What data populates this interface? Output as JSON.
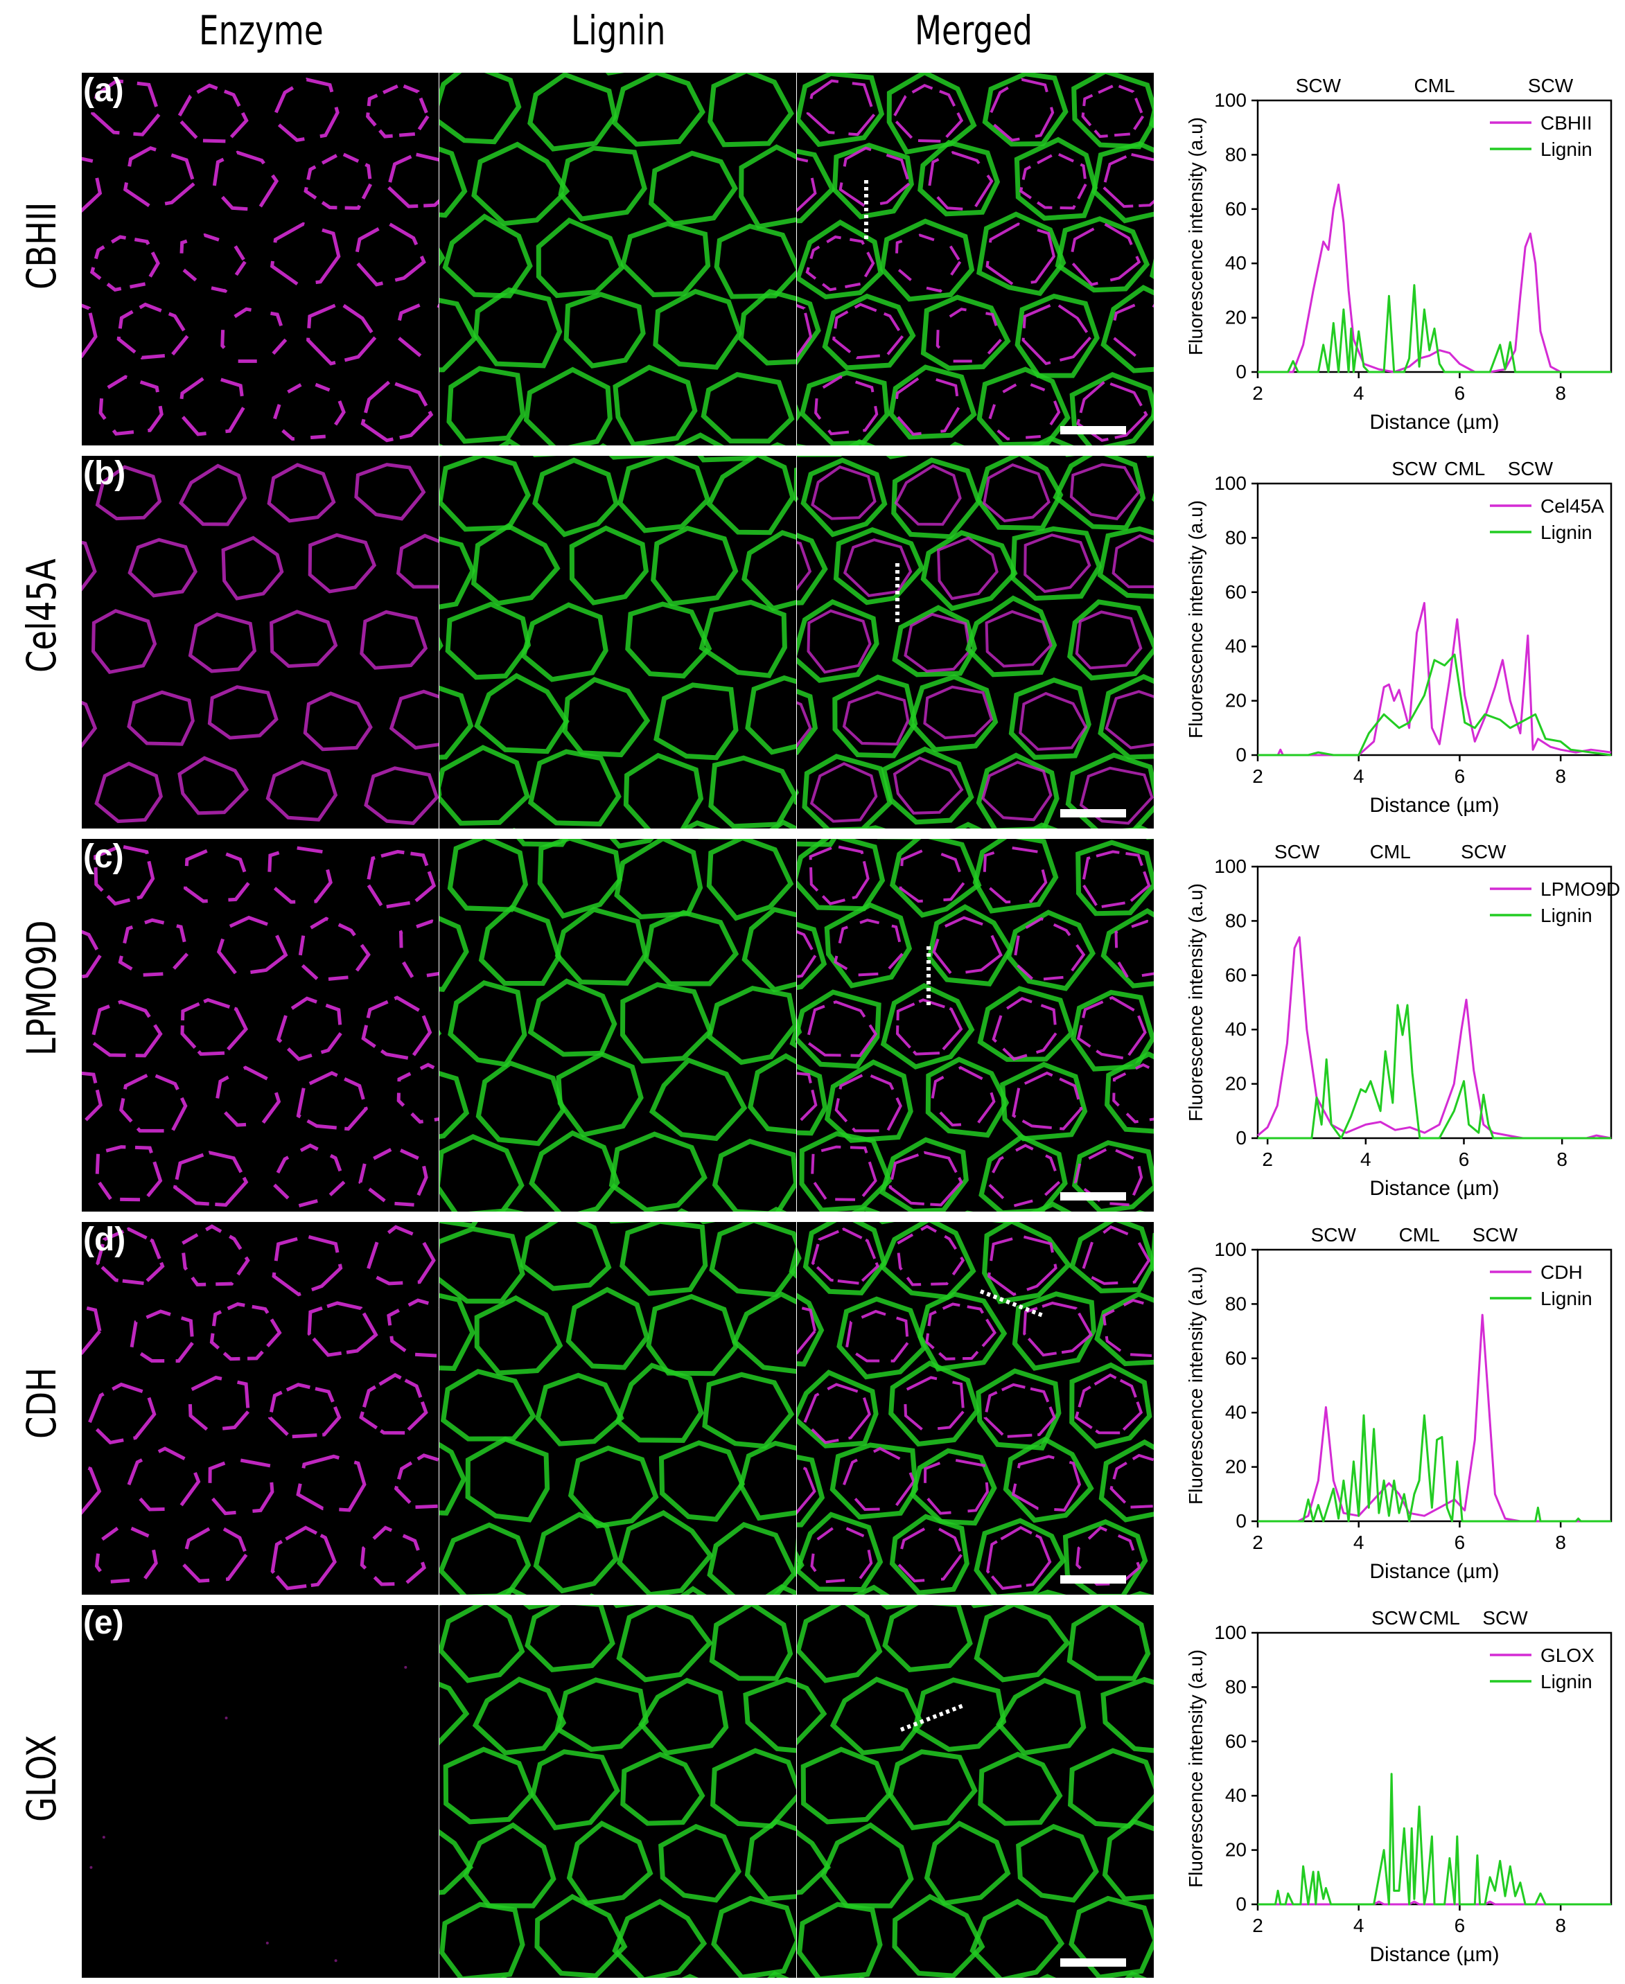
{
  "columns": [
    "Enzyme",
    "Lignin",
    "Merged"
  ],
  "colors": {
    "enzyme": "#d42bd4",
    "lignin": "#22cc22",
    "background": "#000000",
    "line": "#ffffff"
  },
  "rows": [
    {
      "letter": "(a)",
      "enzyme": "CBHII",
      "scalebar": true,
      "line": "vertical",
      "regions": [
        "SCW",
        "CML",
        "SCW"
      ]
    },
    {
      "letter": "(b)",
      "enzyme": "Cel45A",
      "scalebar": true,
      "line": "vertical",
      "regions": [
        "SCW",
        "CML",
        "SCW"
      ]
    },
    {
      "letter": "(c)",
      "enzyme": "LPMO9D",
      "scalebar": true,
      "line": "vertical",
      "regions": [
        "SCW",
        "CML",
        "SCW"
      ]
    },
    {
      "letter": "(d)",
      "enzyme": "CDH",
      "scalebar": true,
      "line": "diagonal-down",
      "regions": [
        "SCW",
        "CML",
        "SCW"
      ]
    },
    {
      "letter": "(e)",
      "enzyme": "GLOX",
      "scalebar": true,
      "line": "diagonal-up",
      "regions": [
        "SCW",
        "CML",
        "SCW"
      ]
    }
  ],
  "chart_data": [
    {
      "type": "line",
      "xlabel": "Distance (µm)",
      "ylabel": "Fluorescence intensity (a.u)",
      "xlim": [
        2,
        9
      ],
      "ylim": [
        0,
        100
      ],
      "xticks": [
        2,
        4,
        6,
        8
      ],
      "yticks": [
        0,
        20,
        40,
        60,
        80,
        100
      ],
      "top_labels": [
        {
          "text": "SCW",
          "x": 3.2
        },
        {
          "text": "CML",
          "x": 5.5
        },
        {
          "text": "SCW",
          "x": 7.8
        }
      ],
      "legend": "top-right",
      "series": [
        {
          "name": "CBHII",
          "color": "#d42bd4",
          "x": [
            2.0,
            2.7,
            2.9,
            3.1,
            3.3,
            3.4,
            3.5,
            3.6,
            3.7,
            3.8,
            3.9,
            4.1,
            4.4,
            4.7,
            5.0,
            5.2,
            5.4,
            5.6,
            5.8,
            6.0,
            6.3,
            6.6,
            6.9,
            7.1,
            7.2,
            7.3,
            7.4,
            7.5,
            7.6,
            7.8,
            8.0,
            9.0
          ],
          "y": [
            0,
            0,
            10,
            30,
            48,
            45,
            60,
            69,
            55,
            30,
            12,
            3,
            1,
            0,
            2,
            5,
            6,
            8,
            7,
            3,
            0,
            0,
            1,
            8,
            28,
            46,
            51,
            40,
            15,
            2,
            0,
            0
          ]
        },
        {
          "name": "Lignin",
          "color": "#22cc22",
          "x": [
            2.0,
            2.6,
            2.7,
            2.8,
            3.2,
            3.3,
            3.4,
            3.5,
            3.6,
            3.7,
            3.8,
            3.85,
            3.9,
            4.0,
            4.1,
            4.2,
            4.3,
            4.5,
            4.6,
            4.7,
            4.9,
            5.0,
            5.1,
            5.2,
            5.3,
            5.4,
            5.5,
            5.6,
            5.7,
            5.8,
            6.0,
            6.6,
            6.8,
            6.9,
            7.0,
            7.1,
            7.2,
            9.0
          ],
          "y": [
            0,
            0,
            4,
            0,
            0,
            10,
            0,
            18,
            0,
            23,
            0,
            16,
            0,
            15,
            2,
            0,
            0,
            0,
            28,
            0,
            0,
            5,
            32,
            2,
            23,
            8,
            16,
            3,
            0,
            0,
            0,
            0,
            10,
            1,
            11,
            0,
            0,
            0
          ]
        }
      ]
    },
    {
      "type": "line",
      "xlabel": "Distance (µm)",
      "ylabel": "Fluorescence intensity (a.u)",
      "xlim": [
        2,
        9
      ],
      "ylim": [
        0,
        100
      ],
      "xticks": [
        2,
        4,
        6,
        8
      ],
      "yticks": [
        0,
        20,
        40,
        60,
        80,
        100
      ],
      "top_labels": [
        {
          "text": "SCW",
          "x": 5.1
        },
        {
          "text": "CML",
          "x": 6.1
        },
        {
          "text": "SCW",
          "x": 7.4
        }
      ],
      "legend": "top-right",
      "series": [
        {
          "name": "Cel45A",
          "color": "#d42bd4",
          "x": [
            2.0,
            2.4,
            2.45,
            2.5,
            4.0,
            4.3,
            4.5,
            4.6,
            4.7,
            4.8,
            5.0,
            5.15,
            5.3,
            5.45,
            5.6,
            5.8,
            5.95,
            6.1,
            6.3,
            6.5,
            6.7,
            6.85,
            7.0,
            7.2,
            7.35,
            7.45,
            7.55,
            7.8,
            8.0,
            8.3,
            8.6,
            9.0
          ],
          "y": [
            0,
            0,
            2,
            0,
            0,
            5,
            25,
            26,
            20,
            24,
            10,
            45,
            56,
            10,
            4,
            28,
            50,
            22,
            5,
            14,
            25,
            35,
            20,
            8,
            44,
            2,
            6,
            3,
            2,
            1,
            2,
            1
          ]
        },
        {
          "name": "Lignin",
          "color": "#22cc22",
          "x": [
            2.0,
            3.0,
            3.2,
            3.5,
            4.0,
            4.2,
            4.5,
            4.8,
            5.0,
            5.3,
            5.5,
            5.7,
            5.9,
            6.1,
            6.3,
            6.5,
            6.8,
            7.0,
            7.2,
            7.5,
            7.7,
            8.0,
            8.2,
            9.0
          ],
          "y": [
            0,
            0,
            1,
            0,
            0,
            8,
            15,
            10,
            12,
            22,
            35,
            33,
            37,
            12,
            10,
            15,
            13,
            10,
            12,
            15,
            6,
            5,
            2,
            0
          ]
        }
      ]
    },
    {
      "type": "line",
      "xlabel": "Distance (µm)",
      "ylabel": "Fluorescence intensity (a.u)",
      "xlim": [
        1.8,
        9
      ],
      "ylim": [
        0,
        100
      ],
      "xticks": [
        2,
        4,
        6,
        8
      ],
      "yticks": [
        0,
        20,
        40,
        60,
        80,
        100
      ],
      "top_labels": [
        {
          "text": "SCW",
          "x": 2.6
        },
        {
          "text": "CML",
          "x": 4.5
        },
        {
          "text": "SCW",
          "x": 6.4
        }
      ],
      "legend": "top-right",
      "series": [
        {
          "name": "LPMO9D",
          "color": "#d42bd4",
          "x": [
            1.8,
            2.0,
            2.2,
            2.4,
            2.55,
            2.65,
            2.8,
            3.0,
            3.3,
            3.6,
            4.0,
            4.3,
            4.6,
            4.9,
            5.2,
            5.5,
            5.8,
            5.95,
            6.05,
            6.2,
            6.4,
            6.6,
            6.9,
            7.2,
            8.5,
            8.7,
            9.0
          ],
          "y": [
            1,
            4,
            12,
            35,
            70,
            74,
            40,
            15,
            5,
            2,
            5,
            6,
            3,
            4,
            2,
            5,
            20,
            40,
            51,
            25,
            5,
            2,
            1,
            0,
            0,
            1,
            0
          ]
        },
        {
          "name": "Lignin",
          "color": "#22cc22",
          "x": [
            1.8,
            2.9,
            3.0,
            3.1,
            3.2,
            3.3,
            3.5,
            3.7,
            3.9,
            4.0,
            4.1,
            4.3,
            4.4,
            4.55,
            4.65,
            4.75,
            4.85,
            4.95,
            5.1,
            5.5,
            5.8,
            6.0,
            6.1,
            6.3,
            6.4,
            6.5,
            6.6,
            9.0
          ],
          "y": [
            0,
            0,
            15,
            5,
            29,
            5,
            0,
            8,
            18,
            17,
            21,
            10,
            32,
            13,
            49,
            38,
            49,
            24,
            0,
            0,
            10,
            21,
            5,
            2,
            16,
            5,
            0,
            0
          ]
        }
      ]
    },
    {
      "type": "line",
      "xlabel": "Distance (µm)",
      "ylabel": "Fluorescence intensity (a.u)",
      "xlim": [
        2,
        9
      ],
      "ylim": [
        0,
        100
      ],
      "xticks": [
        2,
        4,
        6,
        8
      ],
      "yticks": [
        0,
        20,
        40,
        60,
        80,
        100
      ],
      "top_labels": [
        {
          "text": "SCW",
          "x": 3.5
        },
        {
          "text": "CML",
          "x": 5.2
        },
        {
          "text": "SCW",
          "x": 6.7
        }
      ],
      "legend": "top-right",
      "series": [
        {
          "name": "CDH",
          "color": "#d42bd4",
          "x": [
            2.0,
            2.8,
            3.0,
            3.2,
            3.35,
            3.5,
            3.7,
            4.0,
            4.3,
            4.6,
            4.8,
            5.0,
            5.3,
            5.6,
            5.9,
            6.1,
            6.3,
            6.45,
            6.55,
            6.7,
            6.9,
            7.2,
            9.0
          ],
          "y": [
            0,
            0,
            2,
            15,
            42,
            15,
            3,
            2,
            8,
            14,
            10,
            3,
            2,
            5,
            8,
            4,
            30,
            76,
            50,
            10,
            1,
            0,
            0
          ]
        },
        {
          "name": "Lignin",
          "color": "#22cc22",
          "x": [
            2.0,
            2.9,
            3.0,
            3.1,
            3.2,
            3.3,
            3.5,
            3.6,
            3.7,
            3.8,
            3.9,
            4.0,
            4.1,
            4.2,
            4.3,
            4.4,
            4.5,
            4.6,
            4.7,
            4.8,
            4.9,
            5.0,
            5.1,
            5.2,
            5.3,
            5.45,
            5.55,
            5.65,
            5.75,
            5.85,
            5.95,
            6.05,
            6.2,
            7.5,
            7.55,
            7.6,
            8.3,
            8.35,
            8.4,
            9.0
          ],
          "y": [
            0,
            0,
            8,
            0,
            6,
            0,
            12,
            1,
            15,
            0,
            22,
            2,
            39,
            5,
            34,
            3,
            15,
            2,
            15,
            3,
            10,
            0,
            10,
            15,
            39,
            5,
            30,
            31,
            5,
            0,
            22,
            0,
            0,
            0,
            5,
            0,
            0,
            1,
            0,
            0
          ]
        }
      ]
    },
    {
      "type": "line",
      "xlabel": "Distance (µm)",
      "ylabel": "Fluorescence intensity (a.u)",
      "xlim": [
        2,
        9
      ],
      "ylim": [
        0,
        100
      ],
      "xticks": [
        2,
        4,
        6,
        8
      ],
      "yticks": [
        0,
        20,
        40,
        60,
        80,
        100
      ],
      "top_labels": [
        {
          "text": "SCW",
          "x": 4.7
        },
        {
          "text": "CML",
          "x": 5.6
        },
        {
          "text": "SCW",
          "x": 6.9
        }
      ],
      "legend": "top-right",
      "series": [
        {
          "name": "GLOX",
          "color": "#d42bd4",
          "x": [
            2.0,
            4.3,
            4.4,
            4.5,
            4.6,
            5.0,
            5.1,
            5.2,
            6.5,
            6.6,
            6.7,
            9.0
          ],
          "y": [
            0,
            0,
            1,
            0,
            0,
            0,
            1,
            0,
            0,
            1,
            0,
            0
          ]
        },
        {
          "name": "Lignin",
          "color": "#22cc22",
          "x": [
            2.0,
            2.35,
            2.4,
            2.45,
            2.55,
            2.6,
            2.7,
            2.85,
            2.9,
            3.0,
            3.1,
            3.15,
            3.2,
            3.3,
            3.35,
            3.45,
            4.3,
            4.5,
            4.6,
            4.65,
            4.7,
            4.8,
            4.9,
            5.0,
            5.05,
            5.1,
            5.2,
            5.3,
            5.35,
            5.45,
            5.5,
            5.6,
            5.7,
            5.8,
            5.9,
            5.95,
            6.0,
            6.1,
            6.3,
            6.35,
            6.4,
            6.5,
            6.6,
            6.7,
            6.8,
            6.9,
            7.0,
            7.1,
            7.2,
            7.3,
            7.5,
            7.6,
            7.7,
            9.0
          ],
          "y": [
            0,
            0,
            5,
            0,
            0,
            4,
            0,
            0,
            14,
            0,
            12,
            0,
            12,
            2,
            6,
            0,
            0,
            20,
            0,
            48,
            5,
            5,
            28,
            0,
            28,
            2,
            36,
            0,
            5,
            25,
            0,
            0,
            0,
            17,
            0,
            25,
            0,
            0,
            0,
            18,
            0,
            0,
            10,
            5,
            16,
            3,
            14,
            3,
            8,
            0,
            0,
            4,
            0,
            0
          ]
        }
      ]
    }
  ]
}
